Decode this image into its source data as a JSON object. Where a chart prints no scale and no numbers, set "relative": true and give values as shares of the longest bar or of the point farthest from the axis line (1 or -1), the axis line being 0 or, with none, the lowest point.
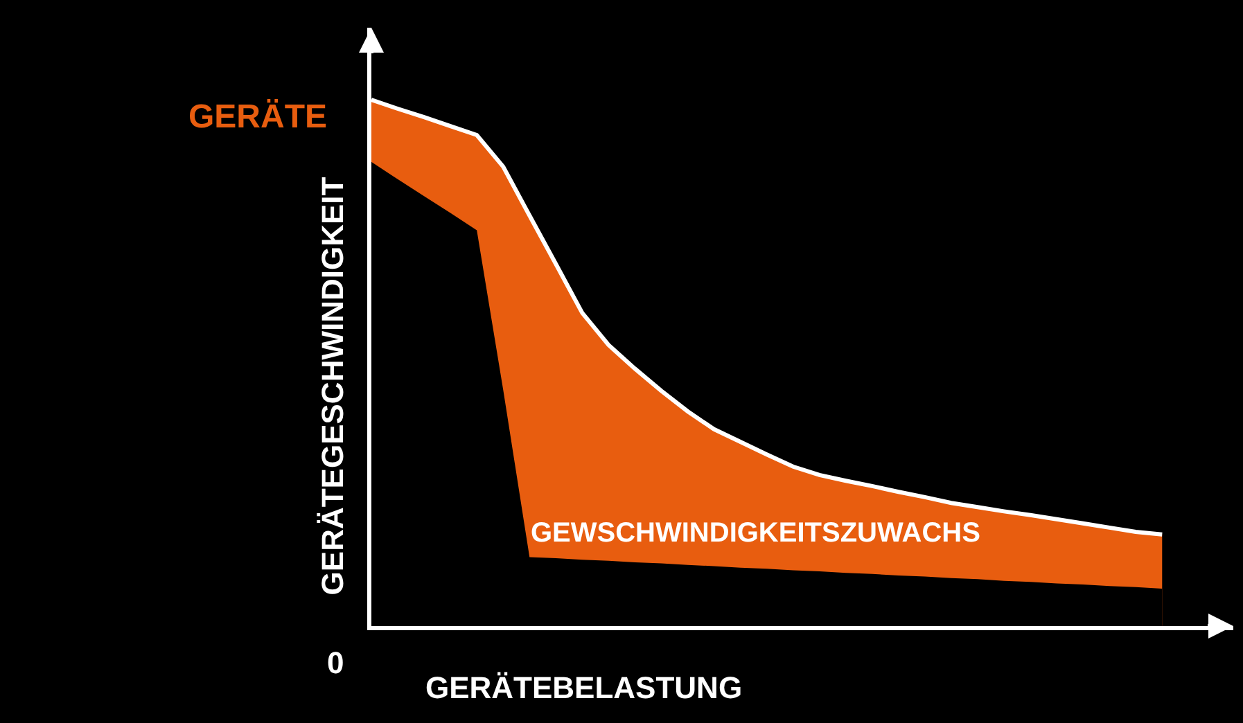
{
  "chart_data": {
    "type": "area",
    "relative": true,
    "xlabel": "GERÄTEBELASTUNG",
    "ylabel": "GERÄTEGESCHWINDIGKEIT",
    "categories": [
      null,
      null,
      null,
      null,
      null,
      null,
      null,
      null,
      null,
      null,
      null,
      null,
      null,
      null,
      null,
      null,
      null,
      null,
      null,
      null,
      null,
      null,
      null,
      null,
      null,
      null,
      null,
      null,
      null,
      null,
      null
    ],
    "annotations": [
      "GEWSCHWINDIGKEITSZUWACHS",
      "0"
    ],
    "series": [
      {
        "name": "GERÄTE",
        "color": "#e85d0f",
        "values": [
          1.0,
          0.983,
          0.967,
          0.95,
          0.933,
          0.873,
          0.78,
          0.688,
          0.595,
          0.534,
          0.489,
          0.447,
          0.408,
          0.374,
          0.35,
          0.326,
          0.303,
          0.287,
          0.276,
          0.266,
          0.255,
          0.245,
          0.234,
          0.226,
          0.218,
          0.211,
          0.203,
          0.195,
          0.187,
          0.179,
          0.174
        ]
      },
      {
        "color": "#000000",
        "values": [
          0.882,
          0.849,
          0.817,
          0.785,
          0.752,
          0.449,
          0.131,
          0.129,
          0.126,
          0.124,
          0.121,
          0.119,
          0.116,
          0.114,
          0.111,
          0.109,
          0.106,
          0.104,
          0.101,
          0.099,
          0.096,
          0.094,
          0.091,
          0.089,
          0.086,
          0.084,
          0.081,
          0.079,
          0.076,
          0.074,
          0.071
        ]
      }
    ],
    "grid": false,
    "legend": false
  }
}
